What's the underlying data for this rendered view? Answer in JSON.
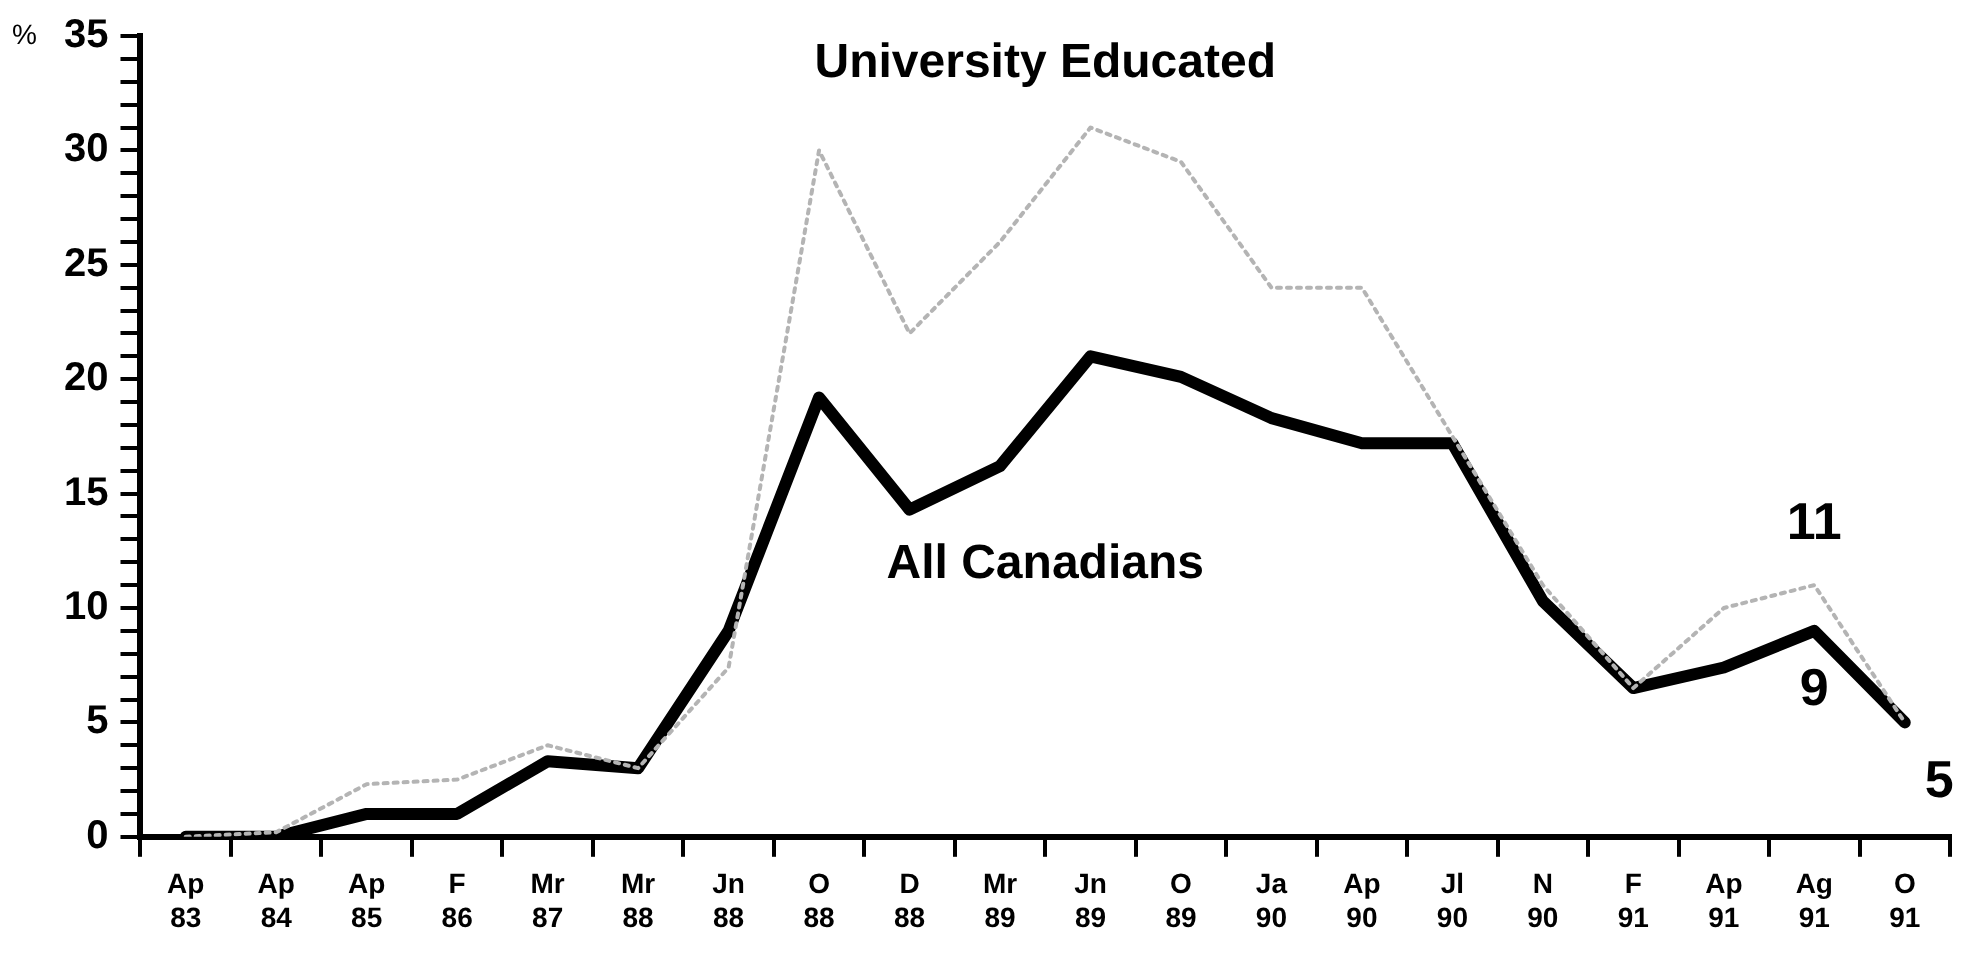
{
  "chart_data": {
    "type": "line",
    "ylabel": "%",
    "categories": [
      "Ap 83",
      "Ap 84",
      "Ap 85",
      "F 86",
      "Mr 87",
      "Mr 88",
      "Jn 88",
      "O 88",
      "D 88",
      "Mr 89",
      "Jn 89",
      "O 89",
      "Ja 90",
      "Ap 90",
      "Jl 90",
      "N 90",
      "F 91",
      "Ap 91",
      "Ag 91",
      "O 91"
    ],
    "series": [
      {
        "name": "University Educated",
        "color": "#b4b4b4",
        "line_style": "dotted",
        "values": [
          0,
          0.2,
          2.3,
          2.5,
          4,
          3,
          7.4,
          30,
          22,
          26,
          31,
          29.5,
          24,
          24,
          17.5,
          11,
          6.5,
          10,
          11,
          5
        ],
        "value_labels": [
          null,
          null,
          null,
          null,
          null,
          null,
          null,
          null,
          null,
          null,
          null,
          null,
          null,
          null,
          null,
          null,
          null,
          null,
          "11",
          null
        ]
      },
      {
        "name": "All Canadians",
        "color": "#000000",
        "line_style": "solid",
        "values": [
          0,
          0,
          1,
          1,
          3.3,
          3,
          9,
          19.2,
          14.3,
          16.2,
          21,
          20.1,
          18.3,
          17.2,
          17.2,
          10.3,
          6.5,
          7.4,
          9,
          5
        ],
        "value_labels": [
          null,
          null,
          null,
          null,
          null,
          null,
          null,
          null,
          null,
          null,
          null,
          null,
          null,
          null,
          null,
          null,
          null,
          null,
          "9",
          "5"
        ]
      }
    ],
    "ylim": [
      0,
      35
    ],
    "yticks": [
      0,
      {
        "value": 1,
        "label": null
      },
      {
        "value": 2,
        "label": null
      },
      {
        "value": 3,
        "label": null
      },
      {
        "value": 4,
        "label": null
      },
      5,
      {
        "value": 6,
        "label": null
      },
      {
        "value": 7,
        "label": null
      },
      {
        "value": 8,
        "label": null
      },
      {
        "value": 9,
        "label": null
      },
      10,
      {
        "value": 11,
        "label": null
      },
      {
        "value": 12,
        "label": null
      },
      {
        "value": 13,
        "label": null
      },
      {
        "value": 14,
        "label": null
      },
      15,
      {
        "value": 16,
        "label": null
      },
      {
        "value": 17,
        "label": null
      },
      {
        "value": 18,
        "label": null
      },
      {
        "value": 19,
        "label": null
      },
      20,
      {
        "value": 21,
        "label": null
      },
      {
        "value": 22,
        "label": null
      },
      {
        "value": 23,
        "label": null
      },
      {
        "value": 24,
        "label": null
      },
      25,
      {
        "value": 26,
        "label": null
      },
      {
        "value": 27,
        "label": null
      },
      {
        "value": 28,
        "label": null
      },
      {
        "value": 29,
        "label": null
      },
      30,
      {
        "value": 31,
        "label": null
      },
      {
        "value": 32,
        "label": null
      },
      {
        "value": 33,
        "label": null
      },
      {
        "value": 34,
        "label": null
      },
      35
    ],
    "grid": false,
    "legend": false,
    "marker": "none"
  }
}
